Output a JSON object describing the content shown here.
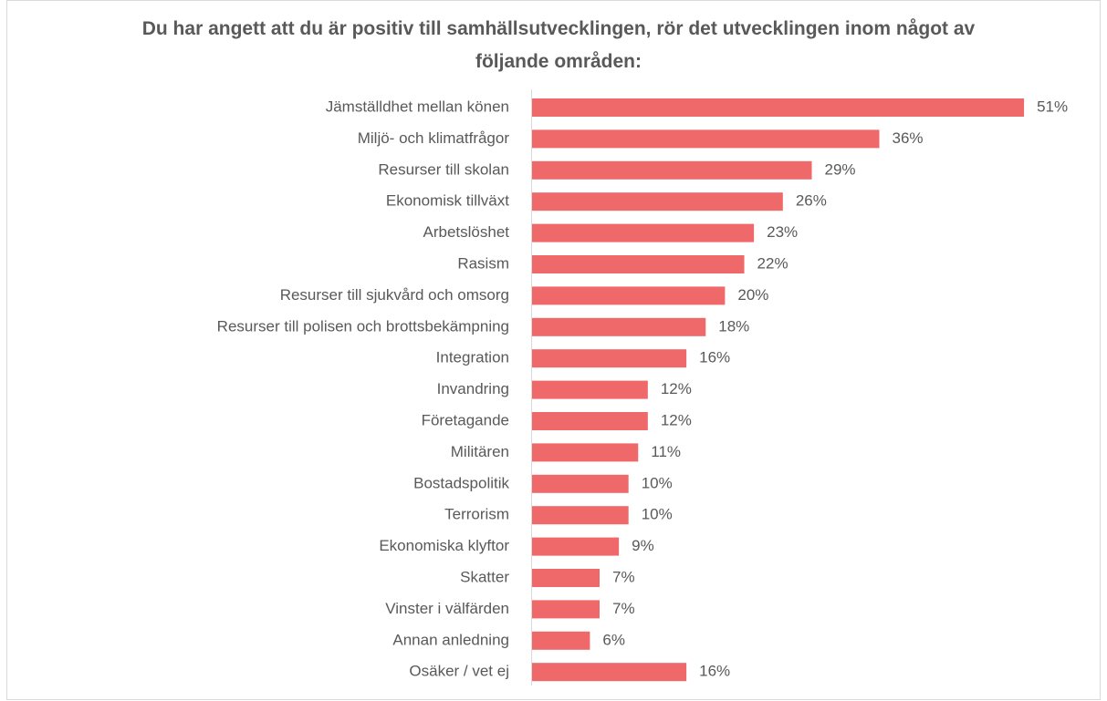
{
  "chart_data": {
    "type": "bar",
    "orientation": "horizontal",
    "title": "Du har angett att du är positiv till samhällsutvecklingen, rör det utvecklingen inom något av följande områden:",
    "categories": [
      "Jämställdhet mellan könen",
      "Miljö- och klimatfrågor",
      "Resurser till skolan",
      "Ekonomisk tillväxt",
      "Arbetslöshet",
      "Rasism",
      "Resurser till sjukvård och omsorg",
      "Resurser till polisen och brottsbekämpning",
      "Integration",
      "Invandring",
      "Företagande",
      "Militären",
      "Bostadspolitik",
      "Terrorism",
      "Ekonomiska klyftor",
      "Skatter",
      "Vinster i välfärden",
      "Annan anledning",
      "Osäker / vet ej"
    ],
    "values": [
      51,
      36,
      29,
      26,
      23,
      22,
      20,
      18,
      16,
      12,
      12,
      11,
      10,
      10,
      9,
      7,
      7,
      6,
      16
    ],
    "value_labels": [
      "51%",
      "36%",
      "29%",
      "26%",
      "23%",
      "22%",
      "20%",
      "18%",
      "16%",
      "12%",
      "12%",
      "11%",
      "10%",
      "10%",
      "9%",
      "7%",
      "7%",
      "6%",
      "16%"
    ],
    "color": "#f0696a"
  }
}
